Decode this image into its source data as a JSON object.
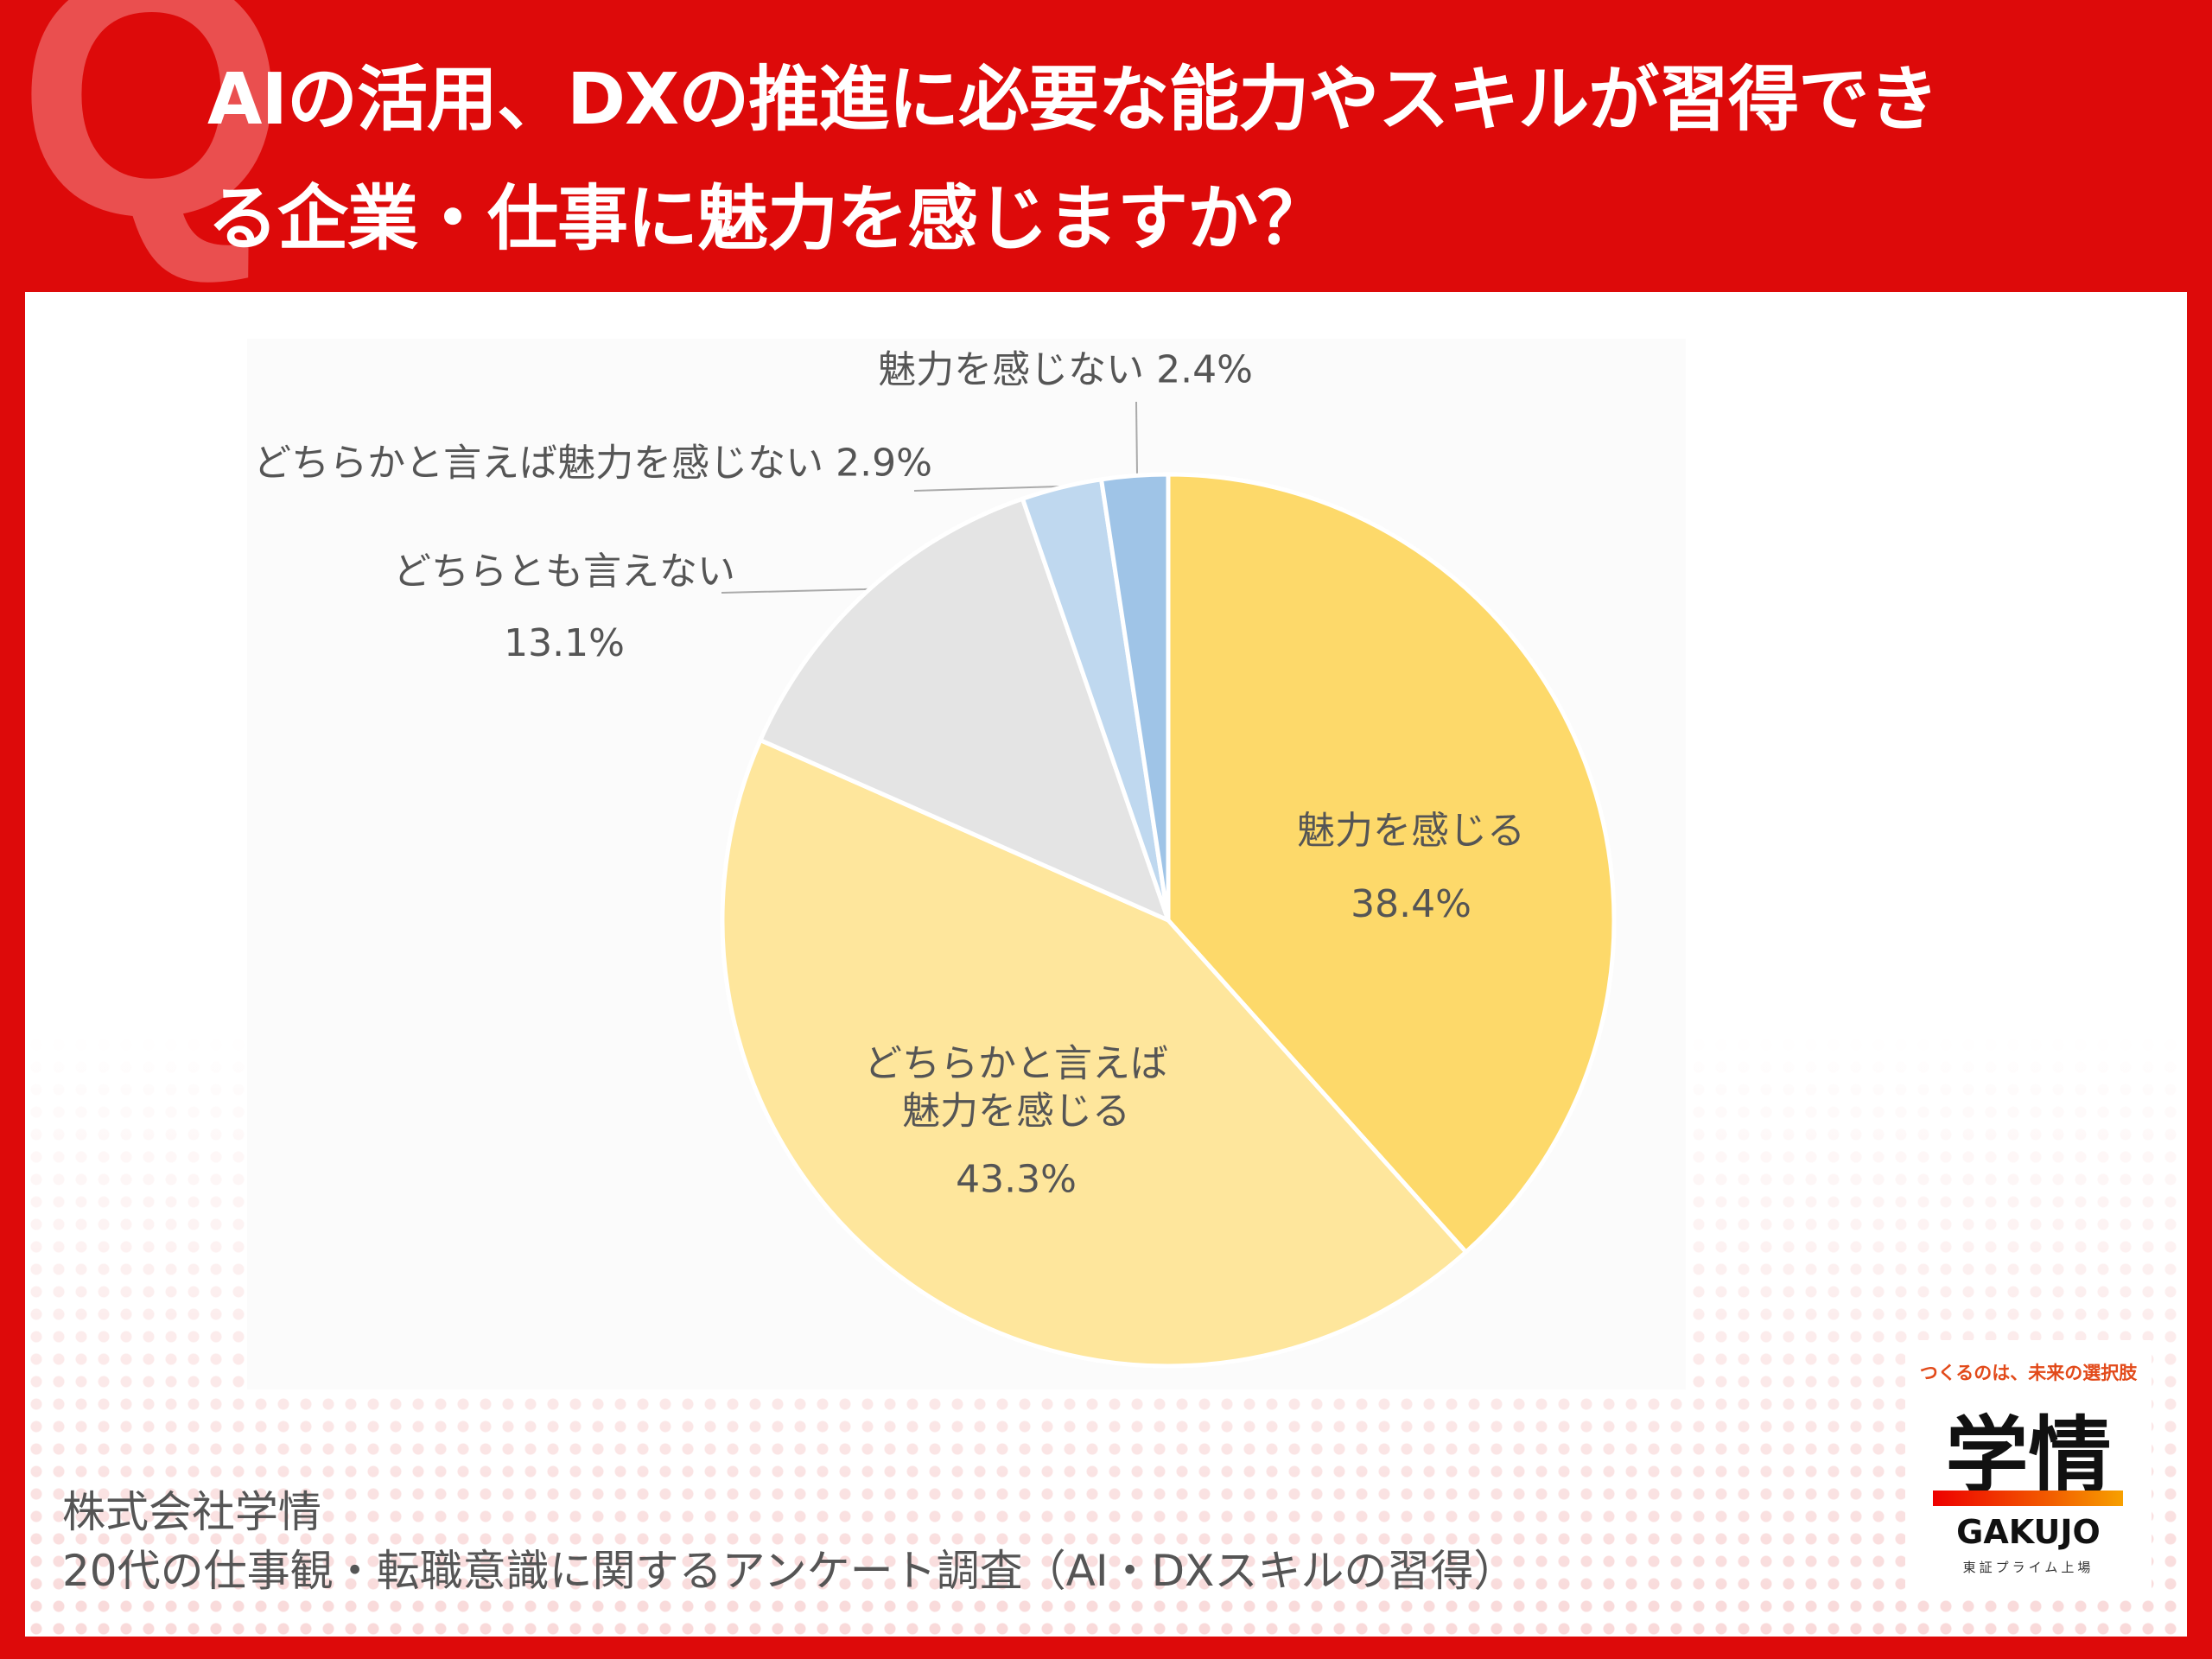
{
  "header": {
    "mark": "Q",
    "title_lines": [
      "AIの活用、DXの推進に必要な能力やスキルが習得でき",
      "る企業・仕事に魅力を感じますか？"
    ]
  },
  "chart_data": {
    "type": "pie",
    "categories": [
      "魅力を感じる",
      "どちらかと言えば魅力を感じる",
      "どちらとも言えない",
      "どちらかと言えば魅力を感じない",
      "魅力を感じない"
    ],
    "values": [
      38.4,
      43.3,
      13.1,
      2.9,
      2.4
    ],
    "value_labels": [
      "38.4%",
      "43.3%",
      "13.1%",
      "2.9%",
      "2.4%"
    ],
    "colors": [
      "#fdd96a",
      "#fee69c",
      "#e4e4e4",
      "#bfd8ef",
      "#9fc4e7"
    ]
  },
  "footer": {
    "lines": [
      "株式会社学情",
      "20代の仕事観・転職意識に関するアンケート調査（AI・DXスキルの習得）"
    ]
  },
  "logo": {
    "tagline": "つくるのは、未来の選択肢",
    "name": "学情",
    "romaji": "GAKUJO",
    "listing": "東証プライム上場"
  }
}
